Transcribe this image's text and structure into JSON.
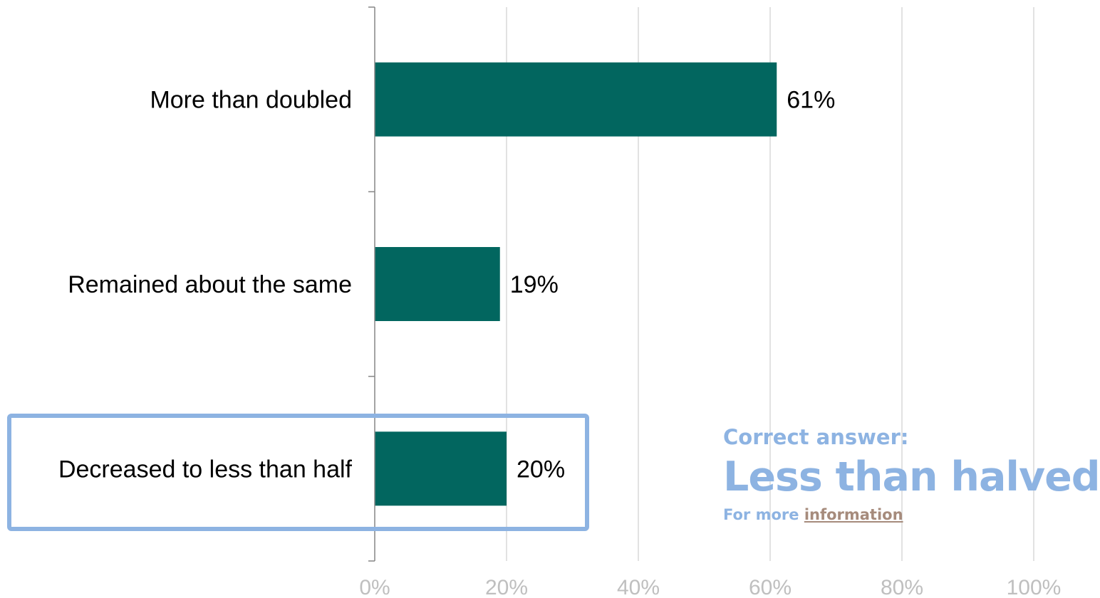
{
  "chart_data": {
    "type": "bar",
    "orientation": "horizontal",
    "categories": [
      "More than doubled",
      "Remained about the same",
      "Decreased to less than half"
    ],
    "values": [
      61,
      19,
      20
    ],
    "value_labels": [
      "61%",
      "19%",
      "20%"
    ],
    "title": "",
    "xlabel": "",
    "ylabel": "",
    "xlim": [
      0,
      100
    ],
    "x_ticks": [
      0,
      20,
      40,
      60,
      80,
      100
    ],
    "x_tick_labels": [
      "0%",
      "20%",
      "40%",
      "60%",
      "80%",
      "100%"
    ],
    "grid": "vertical",
    "legend": "none",
    "bar_color": "#02665f",
    "highlighted_category": "Decreased to less than half"
  },
  "answer": {
    "lead": "Correct answer:",
    "main": "Less than halved",
    "more_prefix": "For more ",
    "more_link": "information"
  },
  "colors": {
    "highlight": "#8db3e2",
    "grid": "#d9d9d9",
    "axis": "#868686",
    "tick_text": "#bfbfbf",
    "link": "#a68b7c"
  }
}
